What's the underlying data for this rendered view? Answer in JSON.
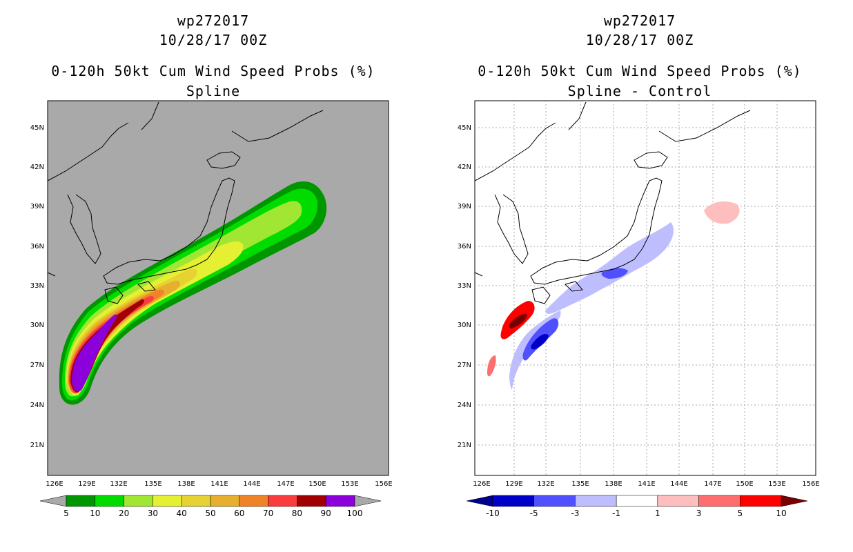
{
  "panels": [
    {
      "id": "left",
      "title_lines": [
        "wp272017",
        "10/28/17 00Z",
        "0-120h 50kt Cum Wind Speed Probs (%)",
        "Spline"
      ],
      "background": "#a9a9a9",
      "lat_ticks": [
        "45N",
        "42N",
        "39N",
        "36N",
        "33N",
        "30N",
        "27N",
        "24N",
        "21N"
      ],
      "lon_ticks": [
        "126E",
        "129E",
        "132E",
        "135E",
        "138E",
        "141E",
        "144E",
        "147E",
        "150E",
        "153E",
        "156E"
      ],
      "colorbar": {
        "colors": [
          "#009600",
          "#00dc00",
          "#a0e632",
          "#e6f032",
          "#e6d232",
          "#e6af2d",
          "#f08228",
          "#fa3c3c",
          "#a00000",
          "#8c00dc"
        ],
        "labels": [
          "5",
          "10",
          "20",
          "30",
          "40",
          "50",
          "60",
          "70",
          "80",
          "90",
          "100"
        ],
        "low_color": "#a9a9a9",
        "high_color": "#a9a9a9"
      }
    },
    {
      "id": "right",
      "title_lines": [
        "wp272017",
        "10/28/17 00Z",
        "0-120h 50kt Cum Wind Speed Probs (%)",
        "Spline - Control"
      ],
      "background": "#ffffff",
      "lat_ticks": [
        "45N",
        "42N",
        "39N",
        "36N",
        "33N",
        "30N",
        "27N",
        "24N",
        "21N"
      ],
      "lon_ticks": [
        "126E",
        "129E",
        "132E",
        "135E",
        "138E",
        "141E",
        "144E",
        "147E",
        "150E",
        "153E",
        "156E"
      ],
      "colorbar": {
        "colors": [
          "#0000c8",
          "#5050ff",
          "#bebeff",
          "#ffffff",
          "#ffbebe",
          "#ff6e6e",
          "#ff0000"
        ],
        "labels": [
          "-10",
          "-5",
          "-3",
          "-1",
          "1",
          "3",
          "5",
          "10"
        ],
        "low_color": "#00008c",
        "high_color": "#780000"
      }
    }
  ]
}
